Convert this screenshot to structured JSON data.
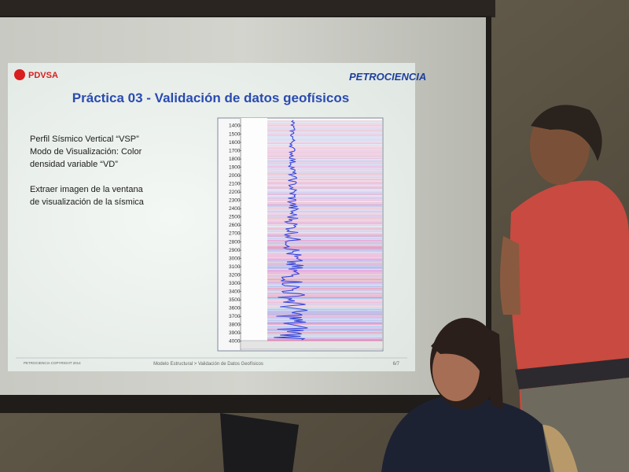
{
  "slide": {
    "logo_left": "PDVSA",
    "logo_right": "PETROCIENCIA",
    "title": "Práctica 03 - Validación de datos geofísicos",
    "text_lines": [
      "Perfil Sísmico Vertical “VSP”",
      "Modo de Visualización: Color",
      "densidad variable “VD”",
      "Extraer imagen de la ventana",
      "de visualización de la sísmica"
    ],
    "seismic_panel": {
      "depth_labels": [
        "1400",
        "1500",
        "1600",
        "1700",
        "1800",
        "1900",
        "2000",
        "2100",
        "2200",
        "2300",
        "2400",
        "2500",
        "2600",
        "2700",
        "2800",
        "2900",
        "3000",
        "3100",
        "3200",
        "3300",
        "3400",
        "3500",
        "3600",
        "3700",
        "3800",
        "3900",
        "4000"
      ]
    },
    "footer": {
      "copyright": "PETROCIENCIA COPYRIGHT 2014",
      "breadcrumb": "Modelo Estructural > Validación de Datos Geofísicos",
      "page": "6/7"
    }
  }
}
